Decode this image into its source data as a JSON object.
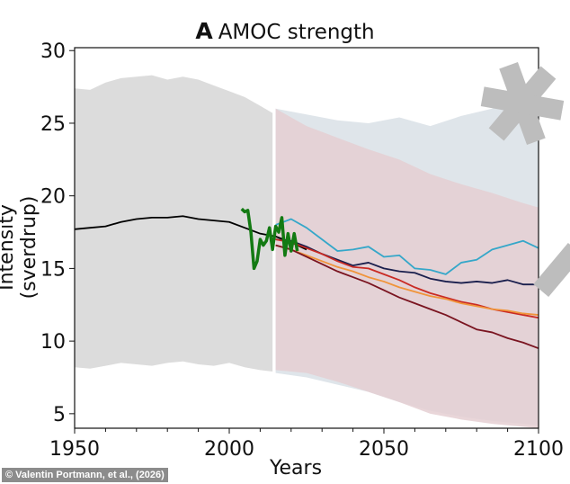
{
  "chart_data": {
    "type": "line",
    "panel_letter": "A",
    "title": "AMOC strength",
    "xlabel": "Years",
    "ylabel": "Intensity (sverdrup)",
    "xlim": [
      1950,
      2100
    ],
    "ylim": [
      4,
      30.2
    ],
    "xticks": [
      1950,
      2000,
      2050,
      2100
    ],
    "yticks": [
      5,
      10,
      15,
      20,
      25,
      30
    ],
    "grid": false,
    "legend": "none",
    "bands": [
      {
        "color": "#dcdcdc",
        "x": [
          1950,
          1955,
          1960,
          1965,
          1970,
          1975,
          1980,
          1985,
          1990,
          1995,
          2000,
          2005,
          2010,
          2014
        ],
        "lower": [
          8.2,
          8.1,
          8.3,
          8.5,
          8.4,
          8.3,
          8.5,
          8.6,
          8.4,
          8.3,
          8.5,
          8.2,
          8.0,
          7.9
        ],
        "upper": [
          27.4,
          27.3,
          27.8,
          28.1,
          28.2,
          28.3,
          28.0,
          28.2,
          28.0,
          27.6,
          27.2,
          26.8,
          26.2,
          25.7
        ]
      },
      {
        "color": "#dfe5ea",
        "x": [
          2015,
          2025,
          2035,
          2045,
          2055,
          2065,
          2075,
          2085,
          2095,
          2100
        ],
        "lower": [
          7.8,
          7.5,
          7.0,
          6.5,
          5.8,
          5.2,
          4.8,
          4.5,
          4.3,
          4.2
        ],
        "upper": [
          26.0,
          25.6,
          25.2,
          25.0,
          25.4,
          24.8,
          25.5,
          26.0,
          26.8,
          27.2
        ]
      },
      {
        "color": "#e5cfd2",
        "x": [
          2015,
          2025,
          2035,
          2045,
          2055,
          2065,
          2075,
          2085,
          2095,
          2100
        ],
        "lower": [
          8.0,
          7.8,
          7.2,
          6.5,
          5.8,
          5.0,
          4.6,
          4.3,
          4.1,
          4.0
        ],
        "upper": [
          26.0,
          24.8,
          24.0,
          23.2,
          22.5,
          21.5,
          20.8,
          20.2,
          19.5,
          19.2
        ]
      }
    ],
    "series": [
      {
        "color": "#000000",
        "x": [
          1950,
          1955,
          1960,
          1965,
          1970,
          1975,
          1980,
          1985,
          1990,
          1995,
          2000,
          2005,
          2010,
          2015,
          2020,
          2025
        ],
        "y": [
          17.7,
          17.8,
          17.9,
          18.2,
          18.4,
          18.5,
          18.5,
          18.6,
          18.4,
          18.3,
          18.2,
          17.8,
          17.4,
          17.2,
          16.8,
          16.3
        ]
      },
      {
        "color": "#35a7c9",
        "x": [
          2015,
          2020,
          2025,
          2030,
          2035,
          2040,
          2045,
          2050,
          2055,
          2060,
          2065,
          2070,
          2075,
          2080,
          2085,
          2090,
          2095,
          2100
        ],
        "y": [
          18.0,
          18.4,
          17.8,
          17.0,
          16.2,
          16.3,
          16.5,
          15.8,
          15.9,
          15.0,
          14.9,
          14.6,
          15.4,
          15.6,
          16.3,
          16.6,
          16.9,
          16.4
        ]
      },
      {
        "color": "#1a1f4d",
        "x": [
          2015,
          2020,
          2025,
          2030,
          2035,
          2040,
          2045,
          2050,
          2055,
          2060,
          2065,
          2070,
          2075,
          2080,
          2085,
          2090,
          2095,
          2100
        ],
        "y": [
          17.0,
          16.9,
          16.5,
          16.0,
          15.6,
          15.2,
          15.4,
          15.0,
          14.8,
          14.7,
          14.3,
          14.1,
          14.0,
          14.1,
          14.0,
          14.2,
          13.9,
          13.9
        ]
      },
      {
        "color": "#c92a24",
        "x": [
          2015,
          2020,
          2025,
          2030,
          2035,
          2040,
          2045,
          2050,
          2055,
          2060,
          2065,
          2070,
          2075,
          2080,
          2085,
          2090,
          2095,
          2100
        ],
        "y": [
          17.0,
          16.8,
          16.4,
          16.0,
          15.5,
          15.1,
          15.0,
          14.6,
          14.2,
          13.7,
          13.3,
          13.0,
          12.7,
          12.5,
          12.2,
          12.0,
          11.8,
          11.6
        ]
      },
      {
        "color": "#f0943a",
        "x": [
          2015,
          2020,
          2025,
          2030,
          2035,
          2040,
          2045,
          2050,
          2055,
          2060,
          2065,
          2070,
          2075,
          2080,
          2085,
          2090,
          2095,
          2100
        ],
        "y": [
          16.6,
          16.3,
          15.9,
          15.5,
          15.1,
          14.8,
          14.4,
          14.1,
          13.7,
          13.4,
          13.1,
          12.9,
          12.6,
          12.4,
          12.2,
          12.1,
          11.9,
          11.8
        ]
      },
      {
        "color": "#7a1420",
        "x": [
          2015,
          2020,
          2025,
          2030,
          2035,
          2040,
          2045,
          2050,
          2055,
          2060,
          2065,
          2070,
          2075,
          2080,
          2085,
          2090,
          2095,
          2100
        ],
        "y": [
          16.6,
          16.3,
          15.8,
          15.3,
          14.8,
          14.4,
          14.0,
          13.5,
          13.0,
          12.6,
          12.2,
          11.8,
          11.3,
          10.8,
          10.6,
          10.2,
          9.9,
          9.5
        ]
      },
      {
        "color": "#137a13",
        "x": [
          2004,
          2005,
          2006,
          2007,
          2008,
          2009,
          2010,
          2011,
          2012,
          2013,
          2014,
          2015,
          2016,
          2017,
          2018,
          2019,
          2020,
          2021,
          2022
        ],
        "y": [
          19.1,
          18.9,
          19.0,
          17.5,
          15.0,
          15.5,
          17.0,
          16.6,
          16.9,
          17.8,
          16.3,
          17.9,
          17.5,
          18.5,
          15.9,
          17.4,
          16.2,
          17.4,
          16.2
        ]
      }
    ]
  },
  "credit": "© Valentin Portmann, et al., (2026)"
}
